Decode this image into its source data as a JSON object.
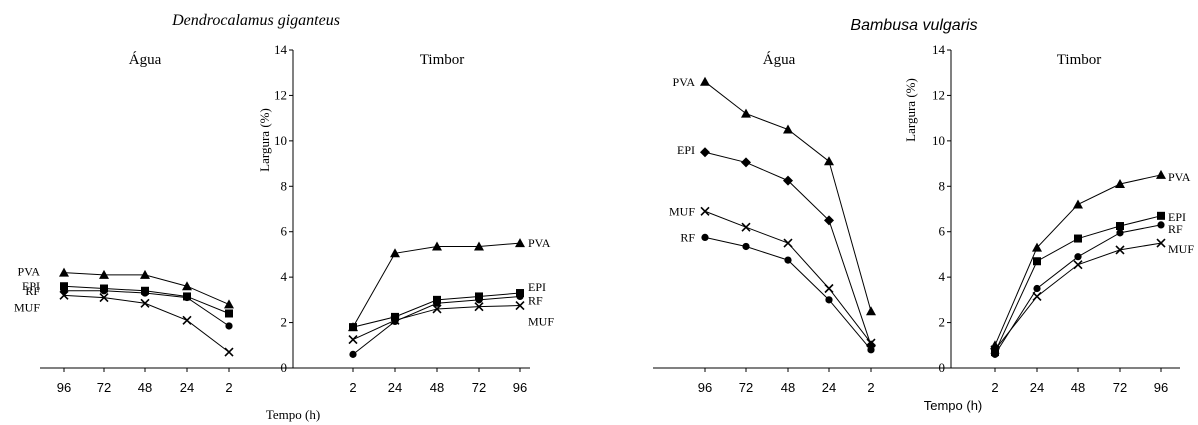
{
  "colors": {
    "ink": "#000000",
    "background": "#ffffff"
  },
  "chart_data": [
    {
      "type": "line",
      "title": "Dendrocalamus giganteus",
      "ylabel": "Largura (%)",
      "xlabel": "Tempo (h)",
      "ylim": [
        0,
        14
      ],
      "yticks": [
        "0",
        "2",
        "4",
        "6",
        "8",
        "10",
        "12",
        "14"
      ],
      "grid": false,
      "legend": "none; series labelled at line ends",
      "subplots": [
        {
          "title": "Água",
          "categories": [
            "96",
            "72",
            "48",
            "24",
            "2"
          ],
          "series": [
            {
              "name": "PVA",
              "marker": "triangle",
              "values": [
                4.2,
                4.1,
                4.1,
                3.6,
                2.8
              ]
            },
            {
              "name": "EPI",
              "marker": "square",
              "values": [
                3.6,
                3.5,
                3.4,
                3.15,
                2.4
              ]
            },
            {
              "name": "RF",
              "marker": "circle",
              "values": [
                3.4,
                3.4,
                3.3,
                3.1,
                1.85
              ]
            },
            {
              "name": "MUF",
              "marker": "cross",
              "values": [
                3.2,
                3.1,
                2.85,
                2.1,
                0.7
              ]
            }
          ]
        },
        {
          "title": "Timbor",
          "categories": [
            "2",
            "24",
            "48",
            "72",
            "96"
          ],
          "series": [
            {
              "name": "PVA",
              "marker": "triangle",
              "values": [
                1.8,
                5.05,
                5.35,
                5.35,
                5.5
              ]
            },
            {
              "name": "EPI",
              "marker": "square",
              "values": [
                1.8,
                2.25,
                3.0,
                3.15,
                3.3
              ]
            },
            {
              "name": "RF",
              "marker": "circle",
              "values": [
                0.6,
                2.05,
                2.85,
                3.0,
                3.15
              ]
            },
            {
              "name": "MUF",
              "marker": "cross",
              "values": [
                1.25,
                2.1,
                2.6,
                2.7,
                2.75
              ]
            }
          ]
        }
      ]
    },
    {
      "type": "line",
      "title": "Bambusa vulgaris",
      "ylabel": "Largura (%)",
      "xlabel": "Tempo (h)",
      "ylim": [
        0,
        14
      ],
      "yticks": [
        "0",
        "2",
        "4",
        "6",
        "8",
        "10",
        "12",
        "14"
      ],
      "grid": false,
      "legend": "none; series labelled at line ends",
      "subplots": [
        {
          "title": "Água",
          "categories": [
            "96",
            "72",
            "48",
            "24",
            "2"
          ],
          "series": [
            {
              "name": "PVA",
              "marker": "triangle",
              "values": [
                12.6,
                11.2,
                10.5,
                9.1,
                2.5
              ]
            },
            {
              "name": "EPI",
              "marker": "diamond",
              "values": [
                9.5,
                9.05,
                8.25,
                6.5,
                1.0
              ]
            },
            {
              "name": "MUF",
              "marker": "cross",
              "values": [
                6.9,
                6.2,
                5.5,
                3.5,
                1.1
              ]
            },
            {
              "name": "RF",
              "marker": "circle",
              "values": [
                5.75,
                5.35,
                4.75,
                3.0,
                0.8
              ]
            }
          ]
        },
        {
          "title": "Timbor",
          "categories": [
            "2",
            "24",
            "48",
            "72",
            "96"
          ],
          "series": [
            {
              "name": "PVA",
              "marker": "triangle",
              "values": [
                1.0,
                5.3,
                7.2,
                8.1,
                8.5
              ]
            },
            {
              "name": "EPI",
              "marker": "square",
              "values": [
                0.7,
                4.7,
                5.7,
                6.25,
                6.7
              ]
            },
            {
              "name": "RF",
              "marker": "circle",
              "values": [
                0.6,
                3.5,
                4.9,
                5.95,
                6.3
              ]
            },
            {
              "name": "MUF",
              "marker": "cross",
              "values": [
                0.8,
                3.15,
                4.55,
                5.2,
                5.5
              ]
            }
          ]
        }
      ]
    }
  ]
}
